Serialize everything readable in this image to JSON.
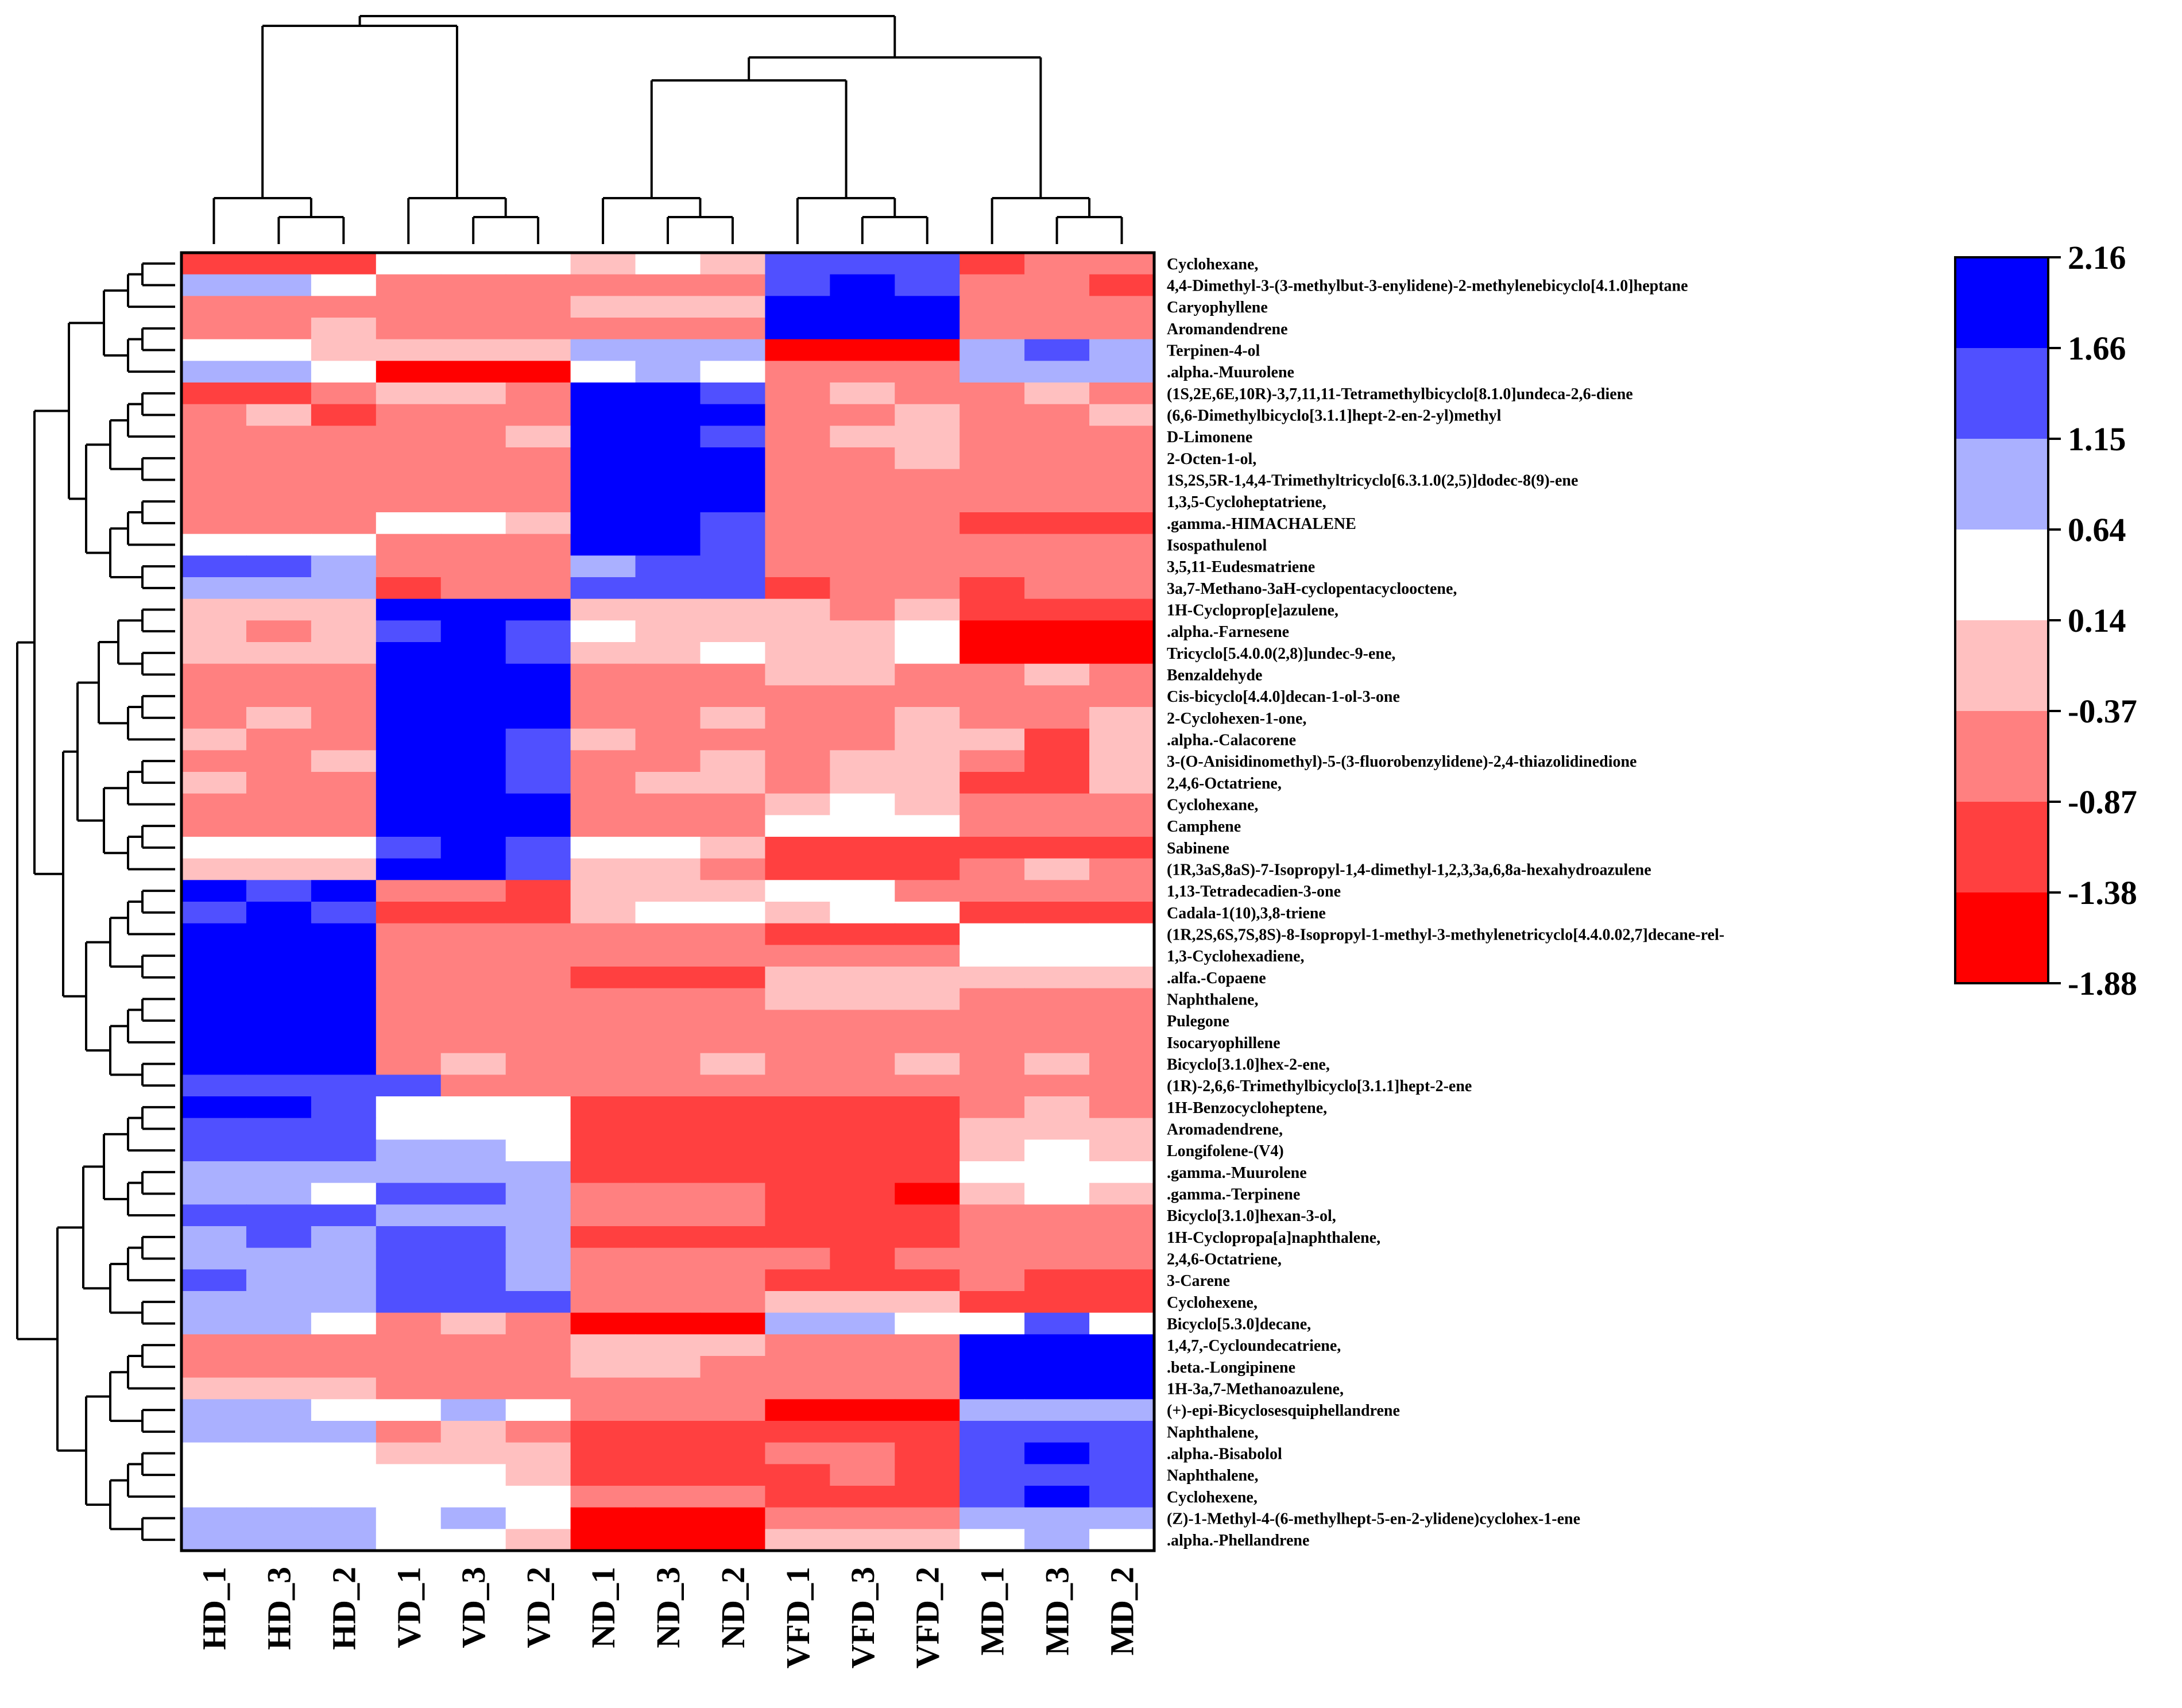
{
  "chart_data": {
    "type": "heatmap",
    "title": "",
    "columns": [
      "HD_1",
      "HD_3",
      "HD_2",
      "VD_1",
      "VD_3",
      "VD_2",
      "ND_1",
      "ND_3",
      "ND_2",
      "VFD_1",
      "VFD_3",
      "VFD_2",
      "MD_1",
      "MD_3",
      "MD_2"
    ],
    "rows": [
      "Cyclohexane,",
      "4,4-Dimethyl-3-(3-methylbut-3-enylidene)-2-methylenebicyclo[4.1.0]heptane",
      "Caryophyllene",
      "Aromandendrene",
      "Terpinen-4-ol",
      ".alpha.-Muurolene",
      "(1S,2E,6E,10R)-3,7,11,11-Tetramethylbicyclo[8.1.0]undeca-2,6-diene",
      "(6,6-Dimethylbicyclo[3.1.1]hept-2-en-2-yl)methyl",
      "D-Limonene",
      "2-Octen-1-ol,",
      "1S,2S,5R-1,4,4-Trimethyltricyclo[6.3.1.0(2,5)]dodec-8(9)-ene",
      "1,3,5-Cycloheptatriene,",
      ".gamma.-HIMACHALENE",
      "Isospathulenol",
      "3,5,11-Eudesmatriene",
      "3a,7-Methano-3aH-cyclopentacyclooctene,",
      "1H-Cycloprop[e]azulene,",
      ".alpha.-Farnesene",
      "Tricyclo[5.4.0.0(2,8)]undec-9-ene,",
      "Benzaldehyde",
      "Cis-bicyclo[4.4.0]decan-1-ol-3-one",
      "2-Cyclohexen-1-one,",
      ".alpha.-Calacorene",
      "3-(O-Anisidinomethyl)-5-(3-fluorobenzylidene)-2,4-thiazolidinedione",
      "2,4,6-Octatriene,",
      "Cyclohexane,",
      "Camphene",
      "Sabinene",
      "(1R,3aS,8aS)-7-Isopropyl-1,4-dimethyl-1,2,3,3a,6,8a-hexahydroazulene",
      "1,13-Tetradecadien-3-one",
      "Cadala-1(10),3,8-triene",
      "(1R,2S,6S,7S,8S)-8-Isopropyl-1-methyl-3-methylenetricyclo[4.4.0.02,7]decane-rel-",
      "1,3-Cyclohexadiene,",
      ".alfa.-Copaene",
      "Naphthalene,",
      "Pulegone",
      "Isocaryophillene",
      "Bicyclo[3.1.0]hex-2-ene,",
      "(1R)-2,6,6-Trimethylbicyclo[3.1.1]hept-2-ene",
      "1H-Benzocycloheptene,",
      "Aromadendrene,",
      "Longifolene-(V4)",
      ".gamma.-Muurolene",
      ".gamma.-Terpinene",
      "Bicyclo[3.1.0]hexan-3-ol,",
      "1H-Cyclopropa[a]naphthalene,",
      "2,4,6-Octatriene,",
      "3-Carene",
      "Cyclohexene,",
      "Bicyclo[5.3.0]decane,",
      "1,4,7,-Cycloundecatriene,",
      ".beta.-Longipinene",
      "1H-3a,7-Methanoazulene,",
      "(+)-epi-Bicyclosesquiphellandrene",
      "Naphthalene,",
      ".alpha.-Bisabolol",
      "Naphthalene,",
      "Cyclohexene,",
      "(Z)-1-Methyl-4-(6-methylhept-5-en-2-ylidene)cyclohex-1-ene",
      ".alpha.-Phellandrene"
    ],
    "values": [
      [
        -1.1,
        -1.1,
        -1.1,
        0.4,
        0.4,
        0.4,
        -0.1,
        0.4,
        -0.1,
        1.4,
        1.4,
        1.4,
        -1.1,
        -0.6,
        -0.6
      ],
      [
        0.9,
        0.9,
        0.4,
        -0.6,
        -0.6,
        -0.6,
        -0.6,
        -0.6,
        -0.6,
        1.4,
        1.9,
        1.4,
        -0.6,
        -0.6,
        -1.1
      ],
      [
        -0.6,
        -0.6,
        -0.6,
        -0.6,
        -0.6,
        -0.6,
        -0.1,
        -0.1,
        -0.1,
        1.9,
        1.9,
        1.9,
        -0.6,
        -0.6,
        -0.6
      ],
      [
        -0.6,
        -0.6,
        -0.1,
        -0.6,
        -0.6,
        -0.6,
        -0.6,
        -0.6,
        -0.6,
        1.9,
        1.9,
        1.9,
        -0.6,
        -0.6,
        -0.6
      ],
      [
        0.4,
        0.4,
        -0.1,
        -0.1,
        -0.1,
        -0.1,
        0.9,
        0.9,
        0.9,
        -1.6,
        -1.6,
        -1.6,
        0.9,
        1.4,
        0.9
      ],
      [
        0.9,
        0.9,
        0.4,
        -1.6,
        -1.6,
        -1.6,
        0.4,
        0.9,
        0.4,
        -0.6,
        -0.6,
        -0.6,
        0.9,
        0.9,
        0.9
      ],
      [
        -1.1,
        -1.1,
        -0.6,
        -0.1,
        -0.1,
        -0.6,
        1.9,
        1.9,
        1.4,
        -0.6,
        -0.1,
        -0.6,
        -0.6,
        -0.1,
        -0.6
      ],
      [
        -0.6,
        -0.1,
        -1.1,
        -0.6,
        -0.6,
        -0.6,
        1.9,
        1.9,
        1.9,
        -0.6,
        -0.6,
        -0.1,
        -0.6,
        -0.6,
        -0.1
      ],
      [
        -0.6,
        -0.6,
        -0.6,
        -0.6,
        -0.6,
        -0.1,
        1.9,
        1.9,
        1.4,
        -0.6,
        -0.1,
        -0.1,
        -0.6,
        -0.6,
        -0.6
      ],
      [
        -0.6,
        -0.6,
        -0.6,
        -0.6,
        -0.6,
        -0.6,
        1.9,
        1.9,
        1.9,
        -0.6,
        -0.6,
        -0.1,
        -0.6,
        -0.6,
        -0.6
      ],
      [
        -0.6,
        -0.6,
        -0.6,
        -0.6,
        -0.6,
        -0.6,
        1.9,
        1.9,
        1.9,
        -0.6,
        -0.6,
        -0.6,
        -0.6,
        -0.6,
        -0.6
      ],
      [
        -0.6,
        -0.6,
        -0.6,
        -0.6,
        -0.6,
        -0.6,
        1.9,
        1.9,
        1.9,
        -0.6,
        -0.6,
        -0.6,
        -0.6,
        -0.6,
        -0.6
      ],
      [
        -0.6,
        -0.6,
        -0.6,
        0.4,
        0.4,
        -0.1,
        1.9,
        1.9,
        1.4,
        -0.6,
        -0.6,
        -0.6,
        -1.1,
        -1.1,
        -1.1
      ],
      [
        0.4,
        0.4,
        0.4,
        -0.6,
        -0.6,
        -0.6,
        1.9,
        1.9,
        1.4,
        -0.6,
        -0.6,
        -0.6,
        -0.6,
        -0.6,
        -0.6
      ],
      [
        1.4,
        1.4,
        0.9,
        -0.6,
        -0.6,
        -0.6,
        0.9,
        1.4,
        1.4,
        -0.6,
        -0.6,
        -0.6,
        -0.6,
        -0.6,
        -0.6
      ],
      [
        0.9,
        0.9,
        0.9,
        -1.1,
        -0.6,
        -0.6,
        1.4,
        1.4,
        1.4,
        -1.1,
        -0.6,
        -0.6,
        -1.1,
        -0.6,
        -0.6
      ],
      [
        -0.1,
        -0.1,
        -0.1,
        1.9,
        1.9,
        1.9,
        -0.1,
        -0.1,
        -0.1,
        -0.1,
        -0.6,
        -0.1,
        -1.1,
        -1.1,
        -1.1
      ],
      [
        -0.1,
        -0.6,
        -0.1,
        1.4,
        1.9,
        1.4,
        0.4,
        -0.1,
        -0.1,
        -0.1,
        -0.1,
        0.4,
        -1.6,
        -1.6,
        -1.6
      ],
      [
        -0.1,
        -0.1,
        -0.1,
        1.9,
        1.9,
        1.4,
        -0.1,
        -0.1,
        0.4,
        -0.1,
        -0.1,
        0.4,
        -1.6,
        -1.6,
        -1.6
      ],
      [
        -0.6,
        -0.6,
        -0.6,
        1.9,
        1.9,
        1.9,
        -0.6,
        -0.6,
        -0.6,
        -0.1,
        -0.1,
        -0.6,
        -0.6,
        -0.1,
        -0.6
      ],
      [
        -0.6,
        -0.6,
        -0.6,
        1.9,
        1.9,
        1.9,
        -0.6,
        -0.6,
        -0.6,
        -0.6,
        -0.6,
        -0.6,
        -0.6,
        -0.6,
        -0.6
      ],
      [
        -0.6,
        -0.1,
        -0.6,
        1.9,
        1.9,
        1.9,
        -0.6,
        -0.6,
        -0.1,
        -0.6,
        -0.6,
        -0.1,
        -0.6,
        -0.6,
        -0.1
      ],
      [
        -0.1,
        -0.6,
        -0.6,
        1.9,
        1.9,
        1.4,
        -0.1,
        -0.6,
        -0.6,
        -0.6,
        -0.6,
        -0.1,
        -0.1,
        -1.1,
        -0.1
      ],
      [
        -0.6,
        -0.6,
        -0.1,
        1.9,
        1.9,
        1.4,
        -0.6,
        -0.6,
        -0.1,
        -0.6,
        -0.1,
        -0.1,
        -0.6,
        -1.1,
        -0.1
      ],
      [
        -0.1,
        -0.6,
        -0.6,
        1.9,
        1.9,
        1.4,
        -0.6,
        -0.1,
        -0.1,
        -0.6,
        -0.1,
        -0.1,
        -1.1,
        -1.1,
        -0.1
      ],
      [
        -0.6,
        -0.6,
        -0.6,
        1.9,
        1.9,
        1.9,
        -0.6,
        -0.6,
        -0.6,
        -0.1,
        0.4,
        -0.1,
        -0.6,
        -0.6,
        -0.6
      ],
      [
        -0.6,
        -0.6,
        -0.6,
        1.9,
        1.9,
        1.9,
        -0.6,
        -0.6,
        -0.6,
        0.4,
        0.4,
        0.4,
        -0.6,
        -0.6,
        -0.6
      ],
      [
        0.4,
        0.4,
        0.4,
        1.4,
        1.9,
        1.4,
        0.4,
        0.4,
        -0.1,
        -1.1,
        -1.1,
        -1.1,
        -1.1,
        -1.1,
        -1.1
      ],
      [
        -0.1,
        -0.1,
        -0.1,
        1.9,
        1.9,
        1.4,
        -0.1,
        -0.1,
        -0.6,
        -1.1,
        -1.1,
        -1.1,
        -0.6,
        -0.1,
        -0.6
      ],
      [
        1.9,
        1.4,
        1.9,
        -0.6,
        -0.6,
        -1.1,
        -0.1,
        -0.1,
        -0.1,
        0.4,
        0.4,
        -0.6,
        -0.6,
        -0.6,
        -0.6
      ],
      [
        1.4,
        1.9,
        1.4,
        -1.1,
        -1.1,
        -1.1,
        -0.1,
        0.4,
        0.4,
        -0.1,
        0.4,
        0.4,
        -1.1,
        -1.1,
        -1.1
      ],
      [
        1.9,
        1.9,
        1.9,
        -0.6,
        -0.6,
        -0.6,
        -0.6,
        -0.6,
        -0.6,
        -1.1,
        -1.1,
        -1.1,
        0.4,
        0.4,
        0.4
      ],
      [
        1.9,
        1.9,
        1.9,
        -0.6,
        -0.6,
        -0.6,
        -0.6,
        -0.6,
        -0.6,
        -0.6,
        -0.6,
        -0.6,
        0.4,
        0.4,
        0.4
      ],
      [
        1.9,
        1.9,
        1.9,
        -0.6,
        -0.6,
        -0.6,
        -1.1,
        -1.1,
        -1.1,
        -0.1,
        -0.1,
        -0.1,
        -0.1,
        -0.1,
        -0.1
      ],
      [
        1.9,
        1.9,
        1.9,
        -0.6,
        -0.6,
        -0.6,
        -0.6,
        -0.6,
        -0.6,
        -0.1,
        -0.1,
        -0.1,
        -0.6,
        -0.6,
        -0.6
      ],
      [
        1.9,
        1.9,
        1.9,
        -0.6,
        -0.6,
        -0.6,
        -0.6,
        -0.6,
        -0.6,
        -0.6,
        -0.6,
        -0.6,
        -0.6,
        -0.6,
        -0.6
      ],
      [
        1.9,
        1.9,
        1.9,
        -0.6,
        -0.6,
        -0.6,
        -0.6,
        -0.6,
        -0.6,
        -0.6,
        -0.6,
        -0.6,
        -0.6,
        -0.6,
        -0.6
      ],
      [
        1.9,
        1.9,
        1.9,
        -0.6,
        -0.1,
        -0.6,
        -0.6,
        -0.6,
        -0.1,
        -0.6,
        -0.6,
        -0.1,
        -0.6,
        -0.1,
        -0.6
      ],
      [
        1.4,
        1.4,
        1.4,
        1.4,
        -0.6,
        -0.6,
        -0.6,
        -0.6,
        -0.6,
        -0.6,
        -0.6,
        -0.6,
        -0.6,
        -0.6,
        -0.6
      ],
      [
        1.9,
        1.9,
        1.4,
        0.4,
        0.4,
        0.4,
        -1.1,
        -1.1,
        -1.1,
        -1.1,
        -1.1,
        -1.1,
        -0.6,
        -0.1,
        -0.6
      ],
      [
        1.4,
        1.4,
        1.4,
        0.4,
        0.4,
        0.4,
        -1.1,
        -1.1,
        -1.1,
        -1.1,
        -1.1,
        -1.1,
        -0.1,
        -0.1,
        -0.1
      ],
      [
        1.4,
        1.4,
        1.4,
        0.9,
        0.9,
        0.4,
        -1.1,
        -1.1,
        -1.1,
        -1.1,
        -1.1,
        -1.1,
        -0.1,
        0.4,
        -0.1
      ],
      [
        0.9,
        0.9,
        0.9,
        0.9,
        0.9,
        0.9,
        -1.1,
        -1.1,
        -1.1,
        -1.1,
        -1.1,
        -1.1,
        0.4,
        0.4,
        0.4
      ],
      [
        0.9,
        0.9,
        0.4,
        1.4,
        1.4,
        0.9,
        -0.6,
        -0.6,
        -0.6,
        -1.1,
        -1.1,
        -1.6,
        -0.1,
        0.4,
        -0.1
      ],
      [
        1.4,
        1.4,
        1.4,
        0.9,
        0.9,
        0.9,
        -0.6,
        -0.6,
        -0.6,
        -1.1,
        -1.1,
        -1.1,
        -0.6,
        -0.6,
        -0.6
      ],
      [
        0.9,
        1.4,
        0.9,
        1.4,
        1.4,
        0.9,
        -1.1,
        -1.1,
        -1.1,
        -1.1,
        -1.1,
        -1.1,
        -0.6,
        -0.6,
        -0.6
      ],
      [
        0.9,
        0.9,
        0.9,
        1.4,
        1.4,
        0.9,
        -0.6,
        -0.6,
        -0.6,
        -0.6,
        -1.1,
        -0.6,
        -0.6,
        -0.6,
        -0.6
      ],
      [
        1.4,
        0.9,
        0.9,
        1.4,
        1.4,
        0.9,
        -0.6,
        -0.6,
        -0.6,
        -1.1,
        -1.1,
        -1.1,
        -0.6,
        -1.1,
        -1.1
      ],
      [
        0.9,
        0.9,
        0.9,
        1.4,
        1.4,
        1.4,
        -0.6,
        -0.6,
        -0.6,
        -0.1,
        -0.1,
        -0.1,
        -1.1,
        -1.1,
        -1.1
      ],
      [
        0.9,
        0.9,
        0.4,
        -0.6,
        -0.1,
        -0.6,
        -1.6,
        -1.6,
        -1.6,
        0.9,
        0.9,
        0.4,
        0.4,
        1.4,
        0.4
      ],
      [
        -0.6,
        -0.6,
        -0.6,
        -0.6,
        -0.6,
        -0.6,
        -0.1,
        -0.1,
        -0.1,
        -0.6,
        -0.6,
        -0.6,
        1.9,
        1.9,
        1.9
      ],
      [
        -0.6,
        -0.6,
        -0.6,
        -0.6,
        -0.6,
        -0.6,
        -0.1,
        -0.1,
        -0.6,
        -0.6,
        -0.6,
        -0.6,
        1.9,
        1.9,
        1.9
      ],
      [
        -0.1,
        -0.1,
        -0.1,
        -0.6,
        -0.6,
        -0.6,
        -0.6,
        -0.6,
        -0.6,
        -0.6,
        -0.6,
        -0.6,
        1.9,
        1.9,
        1.9
      ],
      [
        0.9,
        0.9,
        0.4,
        0.4,
        0.9,
        0.4,
        -0.6,
        -0.6,
        -0.6,
        -1.6,
        -1.6,
        -1.6,
        0.9,
        0.9,
        0.9
      ],
      [
        0.9,
        0.9,
        0.9,
        -0.6,
        -0.1,
        -0.6,
        -1.1,
        -1.1,
        -1.1,
        -1.1,
        -1.1,
        -1.1,
        1.4,
        1.4,
        1.4
      ],
      [
        0.4,
        0.4,
        0.4,
        -0.1,
        -0.1,
        -0.1,
        -1.1,
        -1.1,
        -1.1,
        -0.6,
        -0.6,
        -1.1,
        1.4,
        1.9,
        1.4
      ],
      [
        0.4,
        0.4,
        0.4,
        0.4,
        0.4,
        -0.1,
        -1.1,
        -1.1,
        -1.1,
        -1.1,
        -0.6,
        -1.1,
        1.4,
        1.4,
        1.4
      ],
      [
        0.4,
        0.4,
        0.4,
        0.4,
        0.4,
        0.4,
        -0.6,
        -0.6,
        -0.6,
        -1.1,
        -1.1,
        -1.1,
        1.4,
        1.9,
        1.4
      ],
      [
        0.9,
        0.9,
        0.9,
        0.4,
        0.9,
        0.4,
        -1.6,
        -1.6,
        -1.6,
        -0.6,
        -0.6,
        -0.6,
        0.9,
        0.9,
        0.9
      ],
      [
        0.9,
        0.9,
        0.9,
        0.4,
        0.4,
        -0.1,
        -1.6,
        -1.6,
        -1.6,
        -0.1,
        -0.1,
        -0.1,
        0.4,
        0.9,
        0.4
      ]
    ],
    "color_scale": {
      "ticks": [
        "2.16",
        "1.66",
        "1.15",
        "0.64",
        "0.14",
        "-0.37",
        "-0.87",
        "-1.38",
        "-1.88"
      ],
      "bins": [
        {
          "min": 1.66,
          "max": 2.16,
          "color": "#0000ff"
        },
        {
          "min": 1.15,
          "max": 1.66,
          "color": "#5050ff"
        },
        {
          "min": 0.64,
          "max": 1.15,
          "color": "#aab0ff"
        },
        {
          "min": 0.14,
          "max": 0.64,
          "color": "#ffffff"
        },
        {
          "min": -0.37,
          "max": 0.14,
          "color": "#ffc0c0"
        },
        {
          "min": -0.87,
          "max": -0.37,
          "color": "#ff8080"
        },
        {
          "min": -1.38,
          "max": -0.87,
          "color": "#ff4040"
        },
        {
          "min": -1.88,
          "max": -1.38,
          "color": "#ff0000"
        }
      ]
    },
    "column_dendrogram": "((HD_1,(HD_3,HD_2)),(VD_1,(VD_3,VD_2))),(((ND_1,(ND_3,ND_2)),(VFD_1,(VFD_3,VFD_2))),(MD_1,(MD_3,MD_2)))",
    "row_dendrogram": "hierarchical clustering of 60 compounds"
  }
}
